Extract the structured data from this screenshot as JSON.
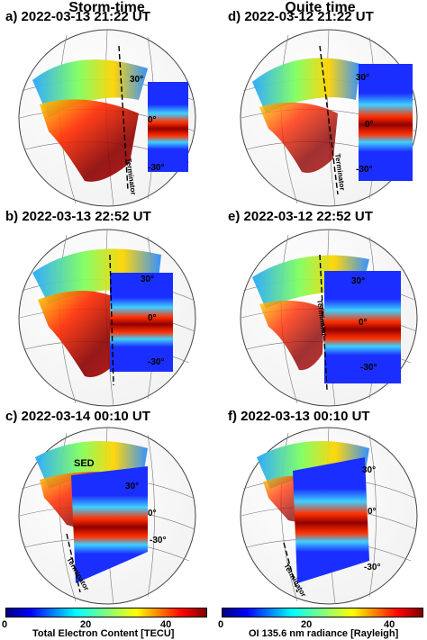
{
  "columns": [
    {
      "title": "Storm-time"
    },
    {
      "title": "Quite time"
    }
  ],
  "panels": [
    {
      "label": "a) 2022-03-13 21:22 UT"
    },
    {
      "label": "d) 2022-03-12 21:22 UT"
    },
    {
      "label": "b) 2022-03-13 22:52 UT"
    },
    {
      "label": "e) 2022-03-12 22:52 UT"
    },
    {
      "label": "c) 2022-03-14 00:10 UT"
    },
    {
      "label": "f) 2022-03-13 00:10 UT"
    }
  ],
  "map_labels": {
    "lat_30": "30°",
    "lat_0": "0°",
    "lat_m30": "-30°",
    "terminator": "Terminator",
    "sed": "SED"
  },
  "colorbars": [
    {
      "label": "Total Electron Content [TECU]",
      "ticks": [
        "0",
        "20",
        "40"
      ],
      "colormap": "jet"
    },
    {
      "label": "OI 135.6 nm radiance [Rayleigh]",
      "ticks": [
        "0",
        "20",
        "40"
      ],
      "colormap": "jet"
    }
  ],
  "colors": {
    "jet_low": "#00007f",
    "jet_mid": "#7fff7f",
    "jet_high": "#7f0000"
  }
}
